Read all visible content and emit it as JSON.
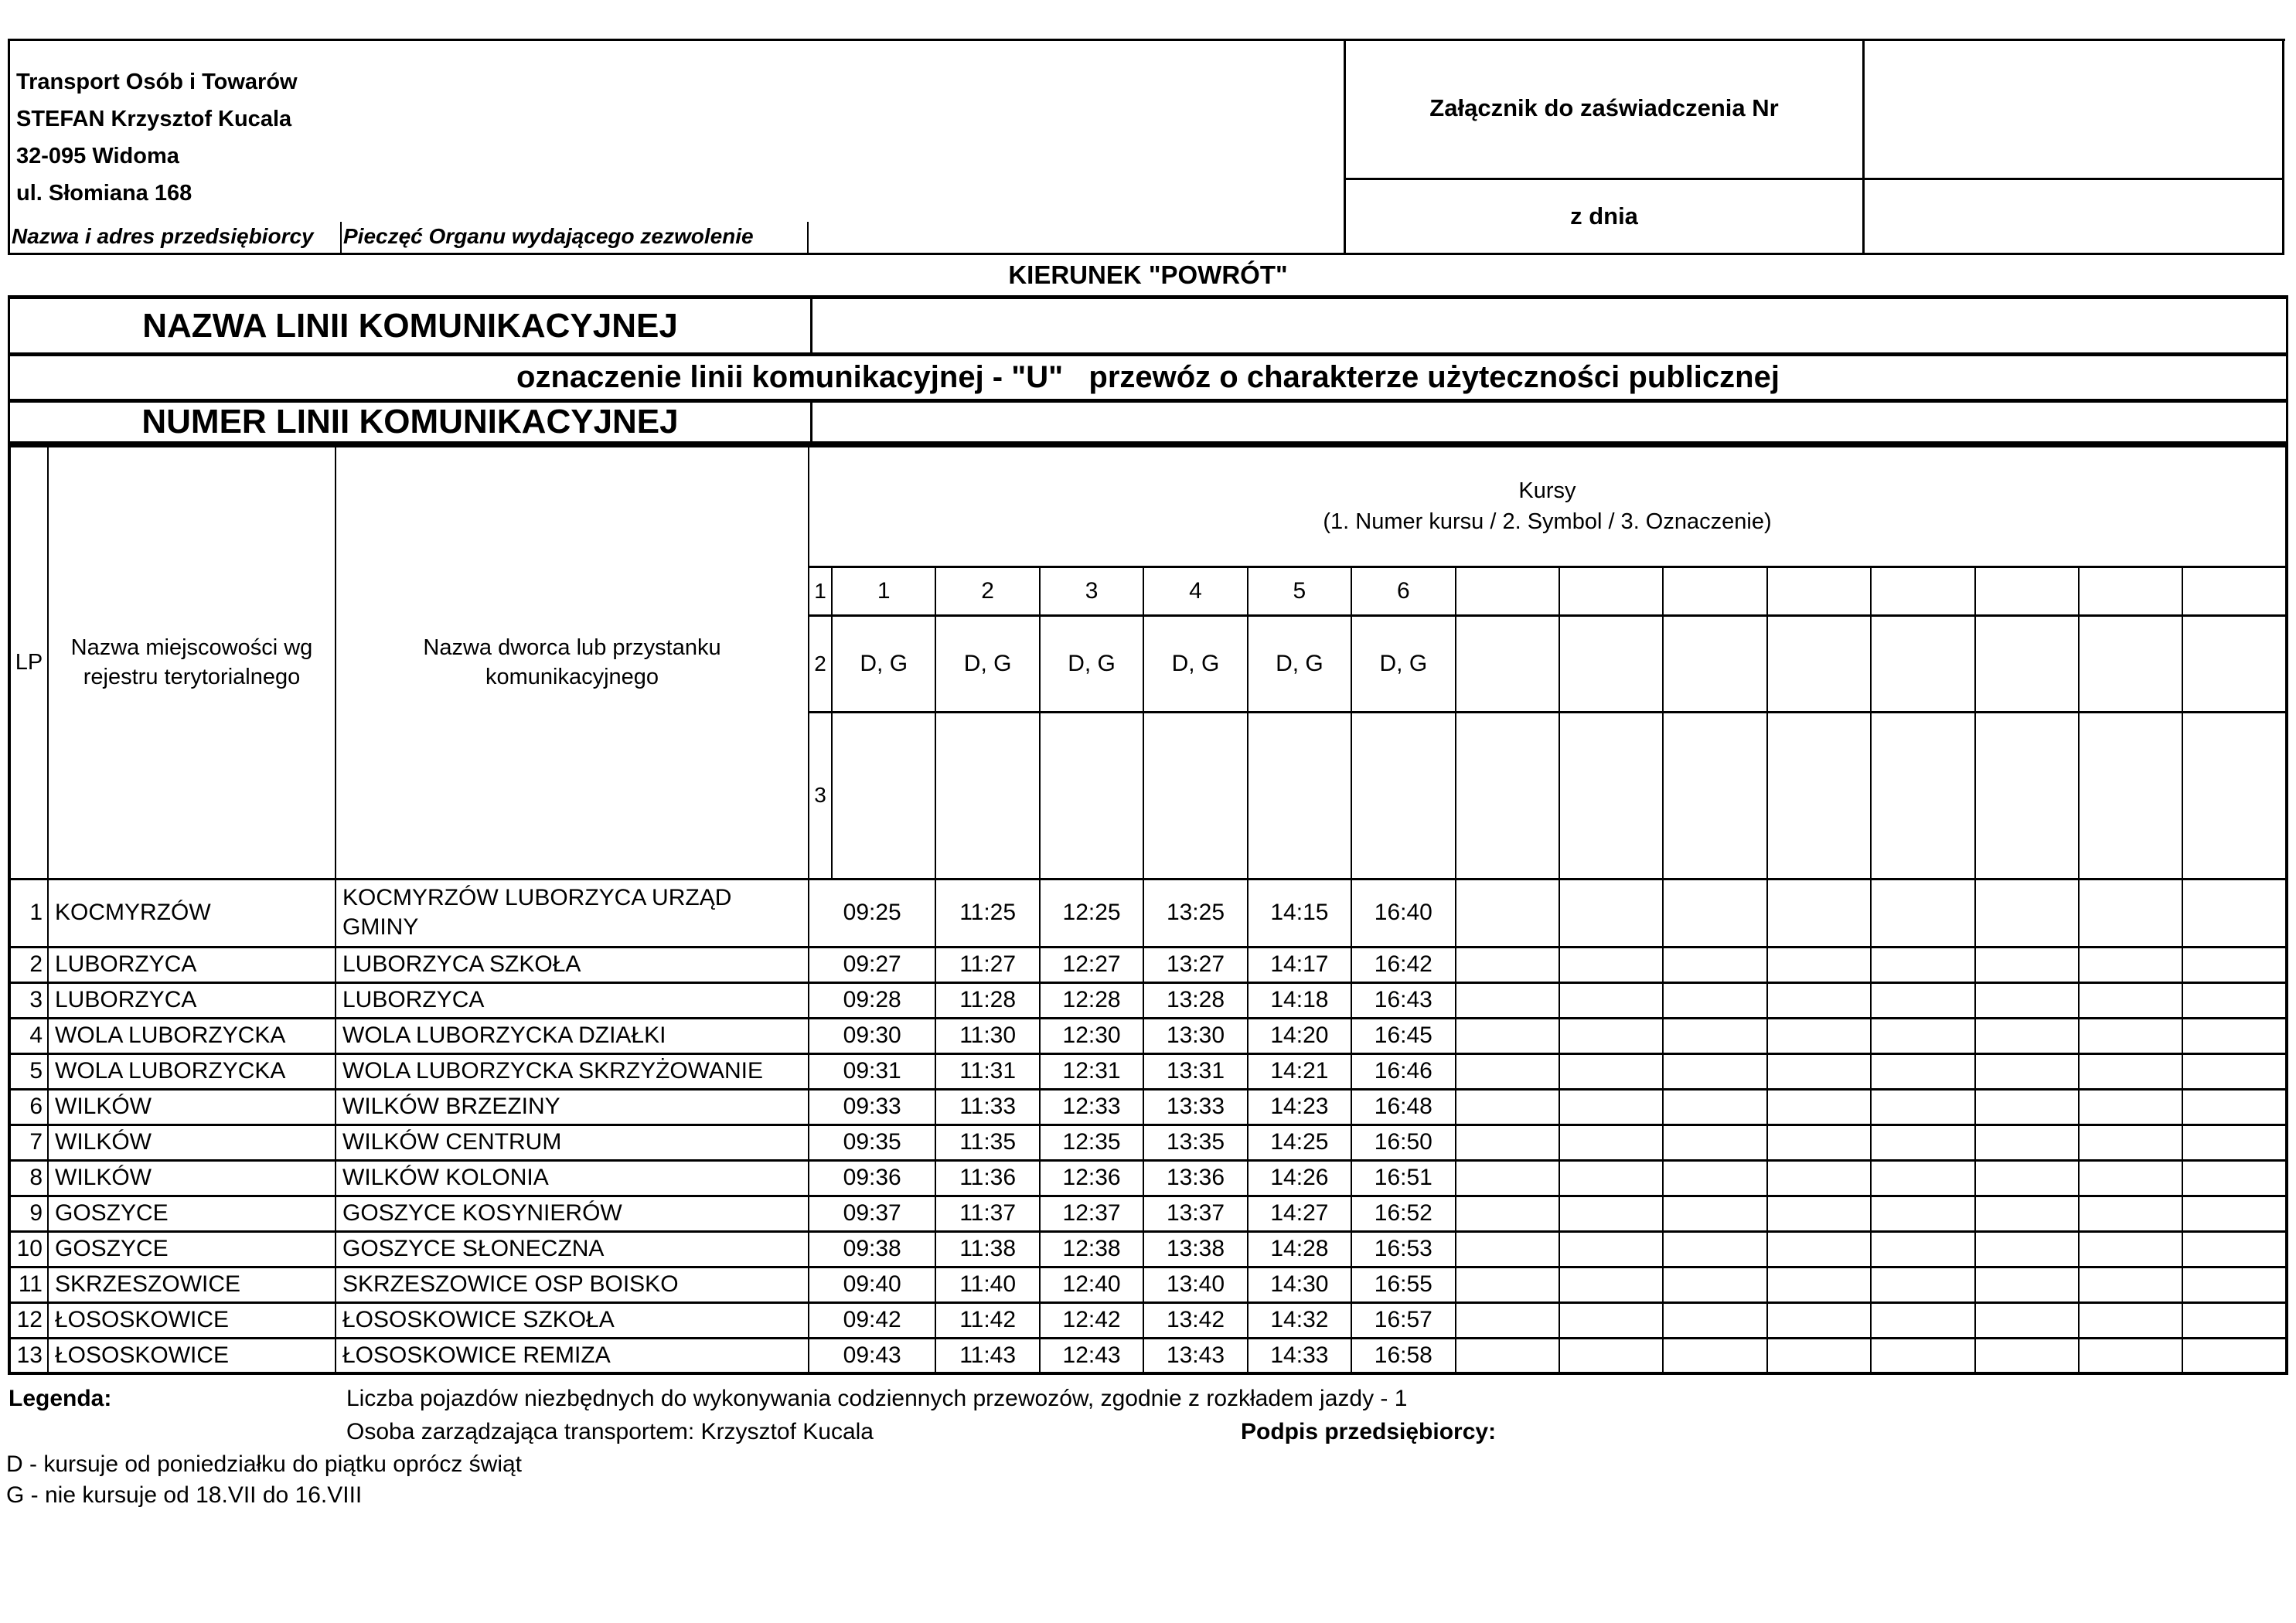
{
  "header_left": {
    "address_lines": [
      "Transport Osób i Towarów",
      "STEFAN Krzysztof Kucala",
      "32-095 Widoma",
      "ul. Słomiana 168"
    ],
    "label_left": "Nazwa i adres przedsiębiorcy",
    "label_right": "Pieczęć Organu wydającego zezwolenie"
  },
  "header_right": {
    "row1_label": "Załącznik do zaświadczenia Nr",
    "row1_value": "",
    "row2_label": "z dnia",
    "row2_value": ""
  },
  "direction_title": "KIERUNEK \"POWRÓT\"",
  "line_info": {
    "name_label": "NAZWA LINII KOMUNIKACYJNEJ",
    "name_value": "",
    "designation": "oznaczenie linii komunikacyjnej - \"U\"   przewóz o charakterze użyteczności publicznej",
    "number_label": "NUMER LINII KOMUNIKACYJNEJ",
    "number_value": ""
  },
  "timetable": {
    "col_lp": "LP",
    "col_place": "Nazwa miejscowości wg rejestru terytorialnego",
    "col_stop": "Nazwa dworca lub przystanku komunikacyjnego",
    "kursy_title": "Kursy",
    "kursy_subtitle": "(1. Numer kursu / 2. Symbol / 3. Oznaczenie)",
    "sub_row_labels": [
      "1",
      "2",
      "3"
    ],
    "course_numbers": [
      "1",
      "2",
      "3",
      "4",
      "5",
      "6",
      "",
      "",
      "",
      "",
      "",
      "",
      "",
      ""
    ],
    "course_symbols": [
      "D, G",
      "D, G",
      "D, G",
      "D, G",
      "D, G",
      "D, G",
      "",
      "",
      "",
      "",
      "",
      "",
      "",
      ""
    ],
    "course_designations": [
      "",
      "",
      "",
      "",
      "",
      "",
      "",
      "",
      "",
      "",
      "",
      "",
      "",
      ""
    ],
    "rows": [
      {
        "lp": "1",
        "place": "KOCMYRZÓW",
        "stop": "KOCMYRZÓW LUBORZYCA URZĄD GMINY",
        "times": [
          "09:25",
          "11:25",
          "12:25",
          "13:25",
          "14:15",
          "16:40",
          "",
          "",
          "",
          "",
          "",
          "",
          "",
          ""
        ]
      },
      {
        "lp": "2",
        "place": "LUBORZYCA",
        "stop": "LUBORZYCA SZKOŁA",
        "times": [
          "09:27",
          "11:27",
          "12:27",
          "13:27",
          "14:17",
          "16:42",
          "",
          "",
          "",
          "",
          "",
          "",
          "",
          ""
        ]
      },
      {
        "lp": "3",
        "place": "LUBORZYCA",
        "stop": "LUBORZYCA",
        "times": [
          "09:28",
          "11:28",
          "12:28",
          "13:28",
          "14:18",
          "16:43",
          "",
          "",
          "",
          "",
          "",
          "",
          "",
          ""
        ]
      },
      {
        "lp": "4",
        "place": "WOLA LUBORZYCKA",
        "stop": "WOLA LUBORZYCKA DZIAŁKI",
        "times": [
          "09:30",
          "11:30",
          "12:30",
          "13:30",
          "14:20",
          "16:45",
          "",
          "",
          "",
          "",
          "",
          "",
          "",
          ""
        ]
      },
      {
        "lp": "5",
        "place": "WOLA LUBORZYCKA",
        "stop": "WOLA LUBORZYCKA SKRZYŻOWANIE",
        "times": [
          "09:31",
          "11:31",
          "12:31",
          "13:31",
          "14:21",
          "16:46",
          "",
          "",
          "",
          "",
          "",
          "",
          "",
          ""
        ]
      },
      {
        "lp": "6",
        "place": "WILKÓW",
        "stop": "WILKÓW BRZEZINY",
        "times": [
          "09:33",
          "11:33",
          "12:33",
          "13:33",
          "14:23",
          "16:48",
          "",
          "",
          "",
          "",
          "",
          "",
          "",
          ""
        ]
      },
      {
        "lp": "7",
        "place": "WILKÓW",
        "stop": "WILKÓW CENTRUM",
        "times": [
          "09:35",
          "11:35",
          "12:35",
          "13:35",
          "14:25",
          "16:50",
          "",
          "",
          "",
          "",
          "",
          "",
          "",
          ""
        ]
      },
      {
        "lp": "8",
        "place": "WILKÓW",
        "stop": "WILKÓW KOLONIA",
        "times": [
          "09:36",
          "11:36",
          "12:36",
          "13:36",
          "14:26",
          "16:51",
          "",
          "",
          "",
          "",
          "",
          "",
          "",
          ""
        ]
      },
      {
        "lp": "9",
        "place": "GOSZYCE",
        "stop": "GOSZYCE KOSYNIERÓW",
        "times": [
          "09:37",
          "11:37",
          "12:37",
          "13:37",
          "14:27",
          "16:52",
          "",
          "",
          "",
          "",
          "",
          "",
          "",
          ""
        ]
      },
      {
        "lp": "10",
        "place": "GOSZYCE",
        "stop": "GOSZYCE SŁONECZNA",
        "times": [
          "09:38",
          "11:38",
          "12:38",
          "13:38",
          "14:28",
          "16:53",
          "",
          "",
          "",
          "",
          "",
          "",
          "",
          ""
        ]
      },
      {
        "lp": "11",
        "place": "SKRZESZOWICE",
        "stop": "SKRZESZOWICE OSP BOISKO",
        "times": [
          "09:40",
          "11:40",
          "12:40",
          "13:40",
          "14:30",
          "16:55",
          "",
          "",
          "",
          "",
          "",
          "",
          "",
          ""
        ]
      },
      {
        "lp": "12",
        "place": "ŁOSOSKOWICE",
        "stop": "ŁOSOSKOWICE SZKOŁA",
        "times": [
          "09:42",
          "11:42",
          "12:42",
          "13:42",
          "14:32",
          "16:57",
          "",
          "",
          "",
          "",
          "",
          "",
          "",
          ""
        ]
      },
      {
        "lp": "13",
        "place": "ŁOSOSKOWICE",
        "stop": "ŁOSOSKOWICE REMIZA",
        "times": [
          "09:43",
          "11:43",
          "12:43",
          "13:43",
          "14:33",
          "16:58",
          "",
          "",
          "",
          "",
          "",
          "",
          "",
          ""
        ]
      }
    ]
  },
  "legend": {
    "label": "Legenda:",
    "line1": "Liczba pojazdów niezbędnych do wykonywania codziennych przewozów, zgodnie z rozkładem jazdy - 1",
    "line2": "Osoba zarządzająca transportem: Krzysztof Kucala",
    "signature_label": "Podpis przedsiębiorcy:",
    "note_d": "D - kursuje od poniedziałku do piątku oprócz świąt",
    "note_g": "G - nie kursuje od 18.VII do 16.VIII"
  }
}
